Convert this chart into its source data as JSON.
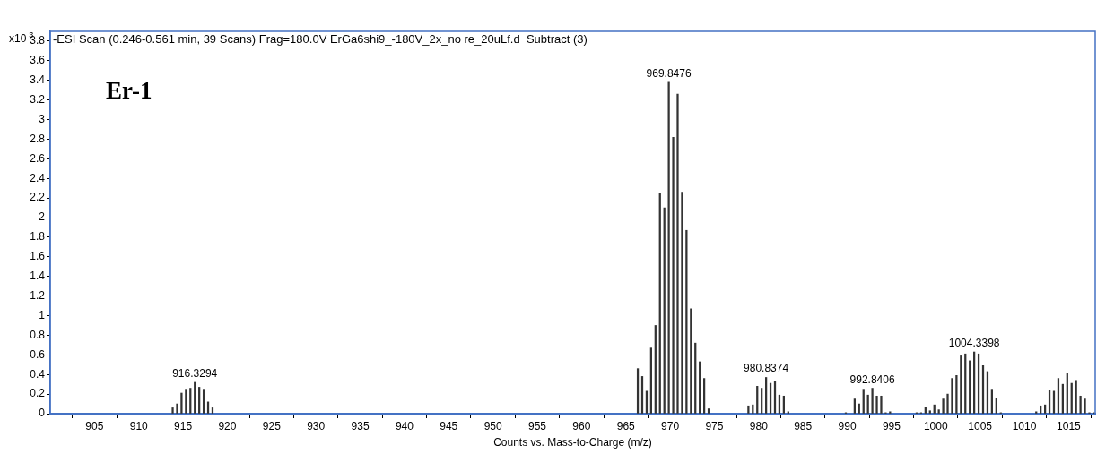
{
  "chart_data": {
    "type": "bar",
    "title": "-ESI Scan (0.246-0.561 min, 39 Scans) Frag=180.0V ErGa6shi9_-180V_2x_no re_20uLf.d  Subtract (3)",
    "xlabel": "Counts vs. Mass-to-Charge (m/z)",
    "ylabel": "x10$^{3}$",
    "series": [
      {
        "color": "#333333",
        "x": [
          913.83,
          914.33,
          914.83,
          915.33,
          915.83,
          916.33,
          916.83,
          917.33,
          917.83,
          918.33,
          966.35,
          966.85,
          967.35,
          967.85,
          968.35,
          968.85,
          969.35,
          969.85,
          970.35,
          970.85,
          971.35,
          971.85,
          972.35,
          972.85,
          973.35,
          973.85,
          974.35,
          978.84,
          979.34,
          979.84,
          980.34,
          980.84,
          981.34,
          981.84,
          982.34,
          982.84,
          983.34,
          989.84,
          990.84,
          991.34,
          991.84,
          992.34,
          992.84,
          993.34,
          993.84,
          994.34,
          994.84,
          997.84,
          998.34,
          998.84,
          999.34,
          999.84,
          1000.34,
          1000.84,
          1001.34,
          1001.84,
          1002.34,
          1002.84,
          1003.34,
          1003.84,
          1004.34,
          1004.84,
          1005.34,
          1005.84,
          1006.34,
          1006.84,
          1007.34,
          1011.34,
          1011.84,
          1012.34,
          1012.84,
          1013.34,
          1013.84,
          1014.34,
          1014.84,
          1015.34,
          1015.84,
          1016.34,
          1016.84,
          1017.34,
          1017.84
        ],
        "values": [
          0.06,
          0.1,
          0.21,
          0.25,
          0.26,
          0.32,
          0.27,
          0.25,
          0.12,
          0.06,
          0.46,
          0.38,
          0.23,
          0.67,
          0.9,
          2.25,
          2.1,
          3.38,
          2.82,
          3.26,
          2.26,
          1.87,
          1.07,
          0.72,
          0.53,
          0.36,
          0.05,
          0.08,
          0.09,
          0.28,
          0.26,
          0.37,
          0.31,
          0.33,
          0.19,
          0.18,
          0.02,
          0.01,
          0.15,
          0.1,
          0.25,
          0.19,
          0.26,
          0.18,
          0.18,
          0.01,
          0.02,
          0.01,
          0.01,
          0.07,
          0.03,
          0.09,
          0.04,
          0.15,
          0.2,
          0.36,
          0.39,
          0.59,
          0.61,
          0.54,
          0.63,
          0.61,
          0.49,
          0.43,
          0.25,
          0.16,
          0.01,
          0.02,
          0.08,
          0.09,
          0.24,
          0.23,
          0.36,
          0.3,
          0.41,
          0.31,
          0.34,
          0.18,
          0.15,
          0.01,
          0.01
        ]
      }
    ],
    "xlim": [
      900,
      1018
    ],
    "xticks": [
      {
        "value": 900,
        "label": null
      },
      905,
      910,
      915,
      920,
      925,
      930,
      935,
      940,
      945,
      950,
      955,
      960,
      965,
      970,
      975,
      980,
      985,
      990,
      995,
      1000,
      1005,
      1010,
      1015
    ],
    "ylim": [
      0,
      3.9
    ],
    "yticks": [
      0,
      0.2,
      0.4,
      0.6,
      0.8,
      1,
      1.2,
      1.4,
      1.6,
      1.8,
      2,
      2.2,
      2.4,
      2.6,
      2.8,
      3,
      3.2,
      3.4,
      3.6,
      3.8
    ],
    "grid": false,
    "legend": false,
    "annotations": [
      "Er-1",
      {
        "text": "916.3294",
        "x": 916.33,
        "y": 0.32
      },
      {
        "text": "969.8476",
        "x": 969.85,
        "y": 3.38
      },
      {
        "text": "980.8374",
        "x": 980.84,
        "y": 0.37
      },
      {
        "text": "992.8406",
        "x": 992.84,
        "y": 0.26
      },
      {
        "text": "1004.3398",
        "x": 1004.34,
        "y": 0.63
      }
    ]
  }
}
